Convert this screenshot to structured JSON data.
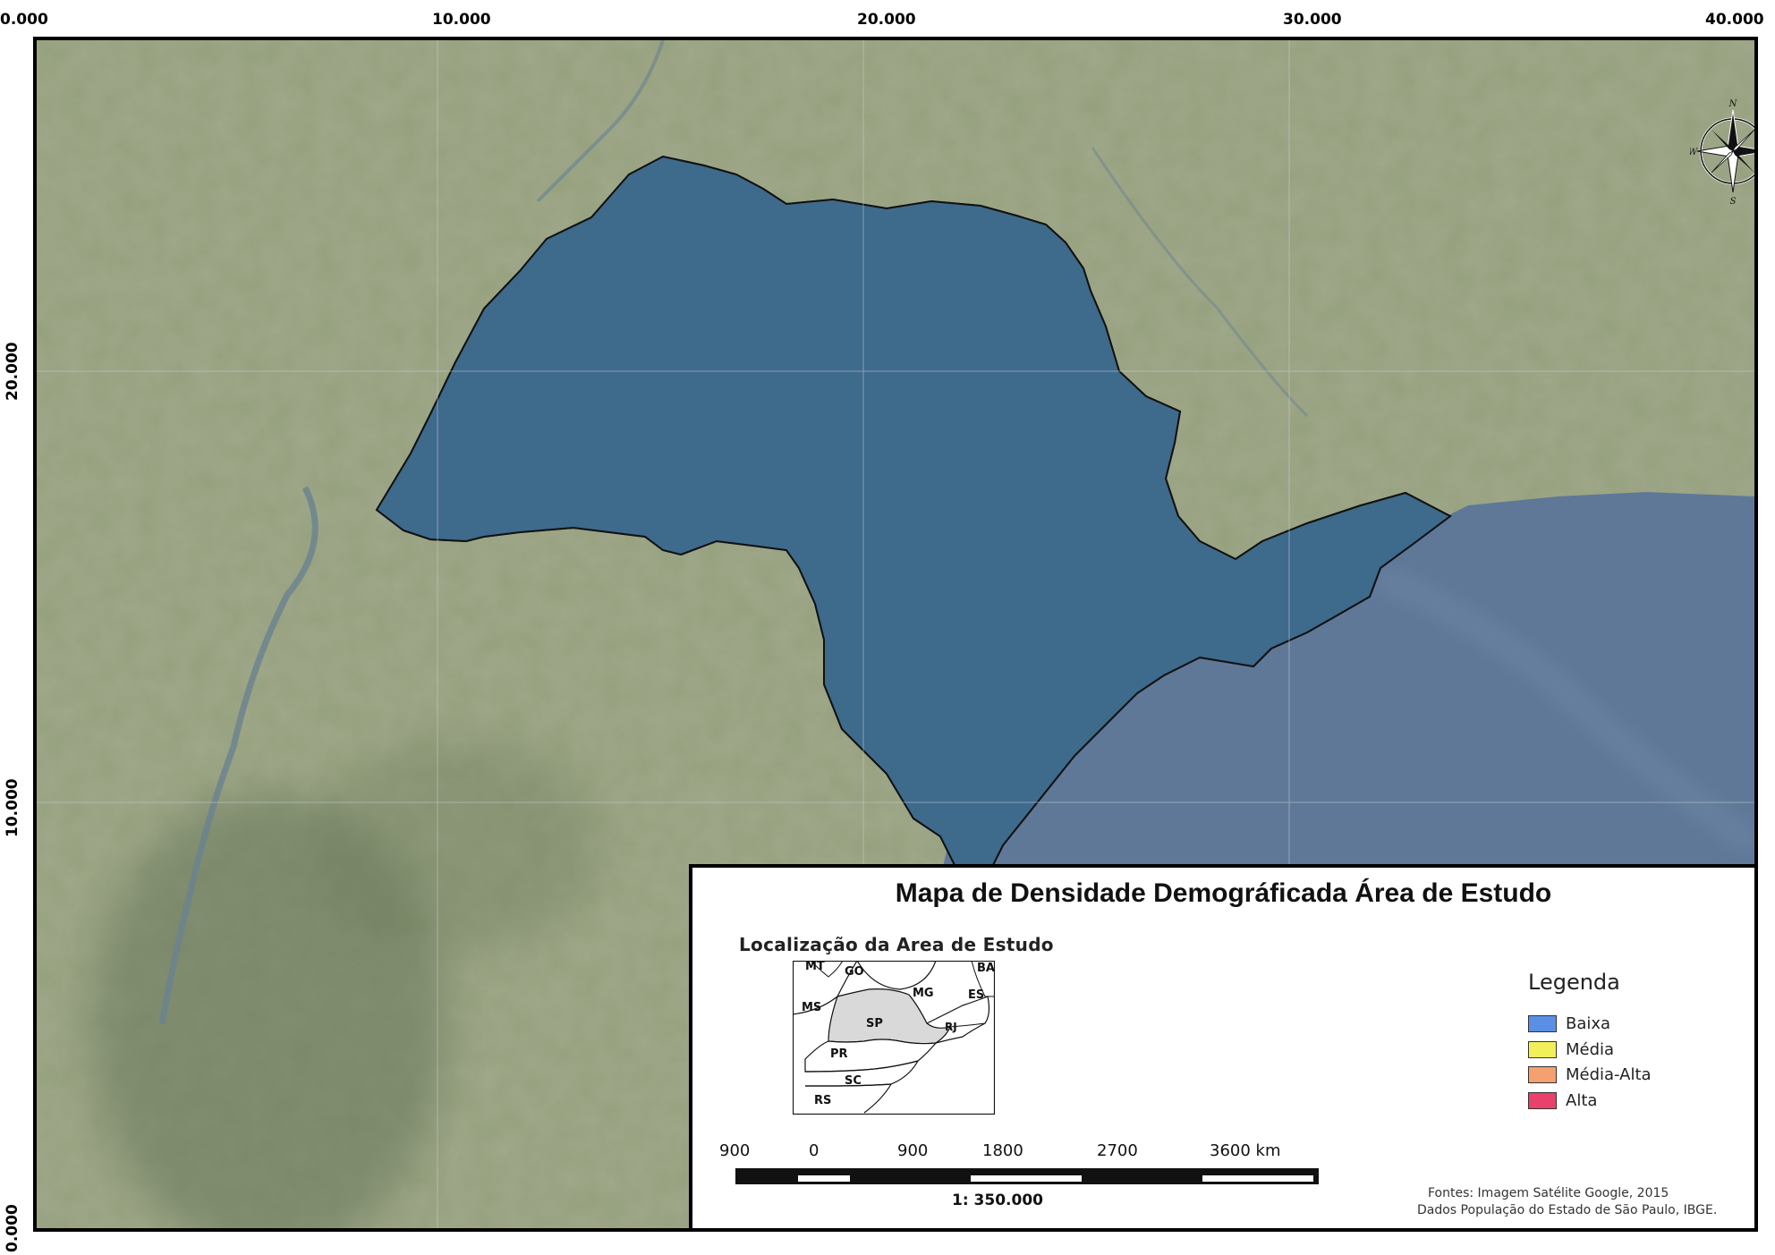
{
  "map": {
    "title": "Mapa de Densidade Demográficada Área de Estudo",
    "top_coords": [
      "0.000",
      "10.000",
      "20.000",
      "30.000",
      "40.000"
    ],
    "side_coords": [
      "20.000",
      "10.000",
      "0.000"
    ],
    "north_arrow": {
      "n": "N",
      "s": "S",
      "e": "E",
      "w": "W"
    }
  },
  "locator": {
    "title": "Localização da Area de Estudo",
    "states": [
      "MT",
      "GO",
      "BA",
      "MS",
      "MG",
      "ES",
      "SP",
      "RJ",
      "PR",
      "SC",
      "RS"
    ]
  },
  "legend": {
    "title": "Legenda",
    "items": [
      {
        "label": "Baixa",
        "color": "#5b8fe6"
      },
      {
        "label": "Média",
        "color": "#f2f05a"
      },
      {
        "label": "Média-Alta",
        "color": "#f4a070"
      },
      {
        "label": "Alta",
        "color": "#e8416a"
      }
    ]
  },
  "scale": {
    "labels": [
      "900",
      "0",
      "900",
      "1800",
      "2700",
      "3600 km"
    ],
    "ratio": "1: 350.000"
  },
  "sources": {
    "line1": "Fontes: Imagem Satélite Google, 2015",
    "line2": "Dados População do Estado de São Paulo, IBGE."
  },
  "colors": {
    "land": "#8c9a74",
    "ocean": "#5f7898",
    "low": "#3e6a8c",
    "medium": "#b4b43a",
    "high": "#d2355e"
  }
}
